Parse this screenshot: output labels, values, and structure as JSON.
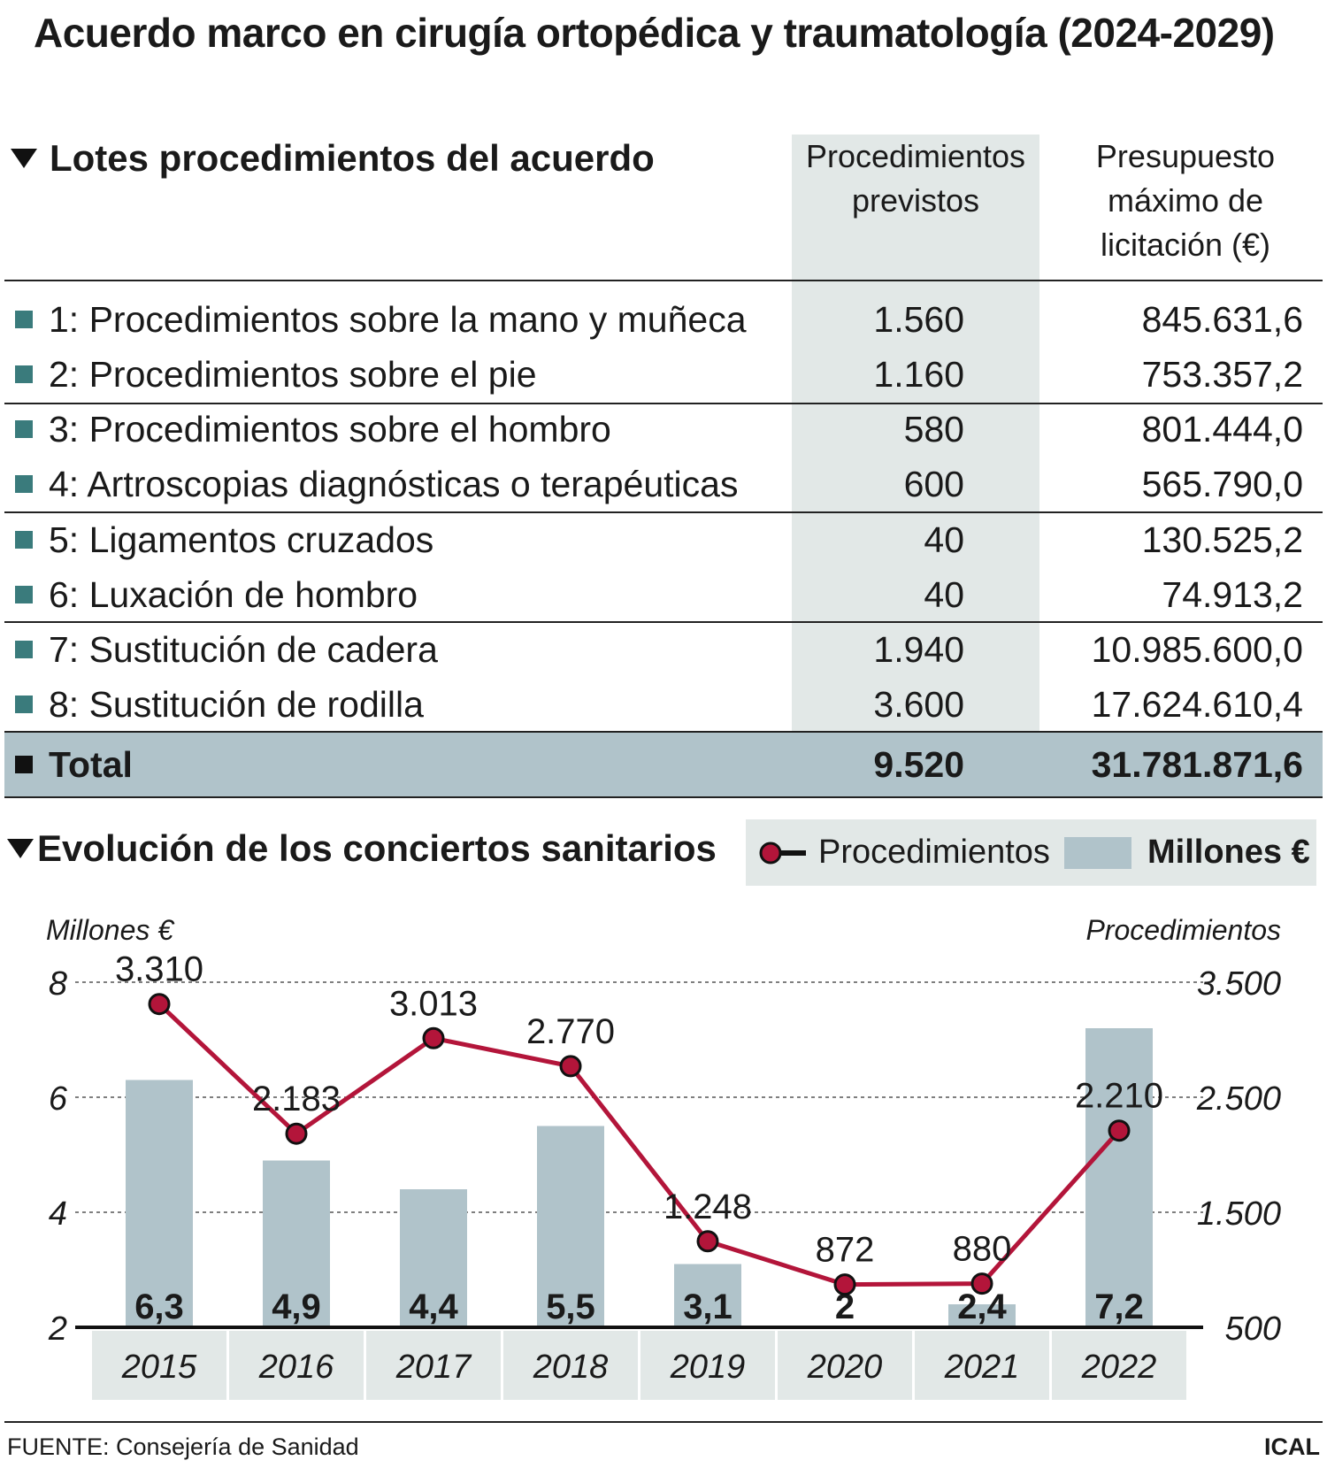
{
  "title": "Acuerdo marco en cirugía ortopédica y traumatología (2024-2029)",
  "table": {
    "heading": "Lotes procedimientos del acuerdo",
    "col_procedures": [
      "Procedimientos",
      "previstos"
    ],
    "col_budget": [
      "Presupuesto",
      "máximo de",
      "licitación (€)"
    ],
    "rows": [
      {
        "label": "1: Procedimientos sobre la mano y muñeca",
        "procedures": "1.560",
        "budget": "845.631,6"
      },
      {
        "label": "2: Procedimientos sobre el pie",
        "procedures": "1.160",
        "budget": "753.357,2"
      },
      {
        "label": "3: Procedimientos sobre el hombro",
        "procedures": "580",
        "budget": "801.444,0"
      },
      {
        "label": "4: Artroscopias diagnósticas o terapéuticas",
        "procedures": "600",
        "budget": "565.790,0"
      },
      {
        "label": "5: Ligamentos cruzados",
        "procedures": "40",
        "budget": "130.525,2"
      },
      {
        "label": "6: Luxación de hombro",
        "procedures": "40",
        "budget": "74.913,2"
      },
      {
        "label": "7: Sustitución de cadera",
        "procedures": "1.940",
        "budget": "10.985.600,0"
      },
      {
        "label": "8: Sustitución de rodilla",
        "procedures": "3.600",
        "budget": "17.624.610,4"
      }
    ],
    "total": {
      "label": "Total",
      "procedures": "9.520",
      "budget": "31.781.871,6"
    },
    "marker_color": "#3a7b7c"
  },
  "legend": {
    "line_label": "Procedimientos",
    "bar_label": "Millones €"
  },
  "chart_data": {
    "type": "bar+line",
    "title": "Evolución de los conciertos sanitarios",
    "categories": [
      "2015",
      "2016",
      "2017",
      "2018",
      "2019",
      "2020",
      "2021",
      "2022"
    ],
    "series": [
      {
        "name": "Millones €",
        "type": "bar",
        "axis": "left",
        "values": [
          6.3,
          4.9,
          4.4,
          5.5,
          3.1,
          2,
          2.4,
          7.2
        ],
        "labels": [
          "6,3",
          "4,9",
          "4,4",
          "5,5",
          "3,1",
          "2",
          "2,4",
          "7,2"
        ],
        "color": "#b0c3ca"
      },
      {
        "name": "Procedimientos",
        "type": "line",
        "axis": "right",
        "values": [
          3310,
          2183,
          3013,
          2770,
          1248,
          872,
          880,
          2210
        ],
        "labels": [
          "3.310",
          "2.183",
          "3.013",
          "2.770",
          "1.248",
          "872",
          "880",
          "2.210"
        ],
        "color": "#b3153a"
      }
    ],
    "y_left": {
      "label": "Millones €",
      "range": [
        2,
        8
      ],
      "ticks": [
        2,
        4,
        6,
        8
      ],
      "tick_labels": [
        "2",
        "4",
        "6",
        "8"
      ]
    },
    "y_right": {
      "label": "Procedimientos",
      "range": [
        500,
        3500
      ],
      "ticks": [
        500,
        1500,
        2500,
        3500
      ],
      "tick_labels": [
        "500",
        "1.500",
        "2.500",
        "3.500"
      ]
    },
    "grid": true
  },
  "footer": {
    "source": "FUENTE: Consejería de Sanidad",
    "credit": "ICAL"
  }
}
